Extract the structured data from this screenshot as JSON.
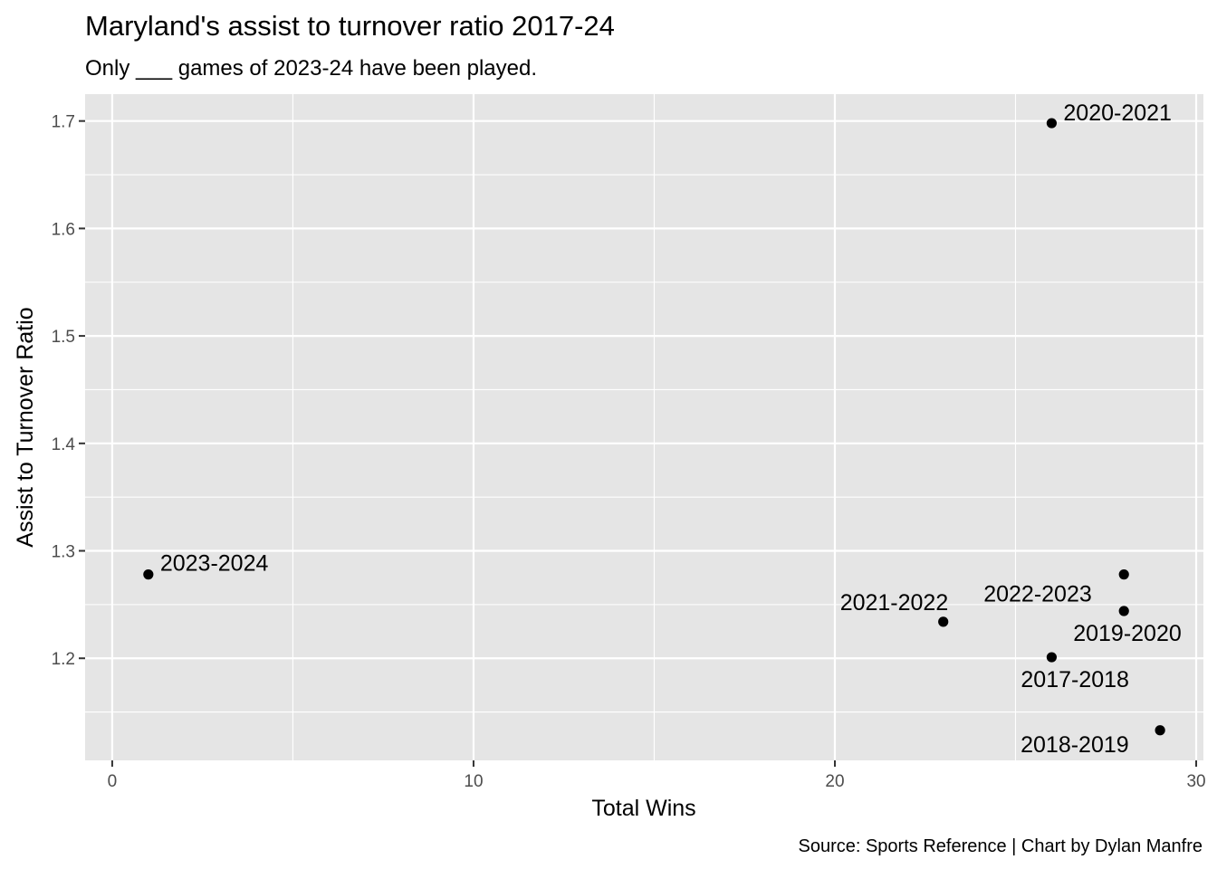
{
  "chart_data": {
    "type": "scatter",
    "title": "Maryland's assist to turnover ratio 2017-24",
    "subtitle": "Only ___ games of 2023-24 have been played.",
    "xlabel": "Total Wins",
    "ylabel": "Assist to Turnover Ratio",
    "caption": "Source: Sports Reference | Chart by Dylan Manfre",
    "xlim": [
      -0.75,
      30.2
    ],
    "ylim": [
      1.105,
      1.725
    ],
    "x_ticks": [
      0,
      10,
      20,
      30
    ],
    "x_tick_labels": [
      "0",
      "10",
      "20",
      "30"
    ],
    "y_ticks": [
      1.2,
      1.3,
      1.4,
      1.5,
      1.6,
      1.7
    ],
    "y_tick_labels": [
      "1.2",
      "1.3",
      "1.4",
      "1.5",
      "1.6",
      "1.7"
    ],
    "grid": true,
    "points": [
      {
        "label": "2020-2021",
        "x": 26,
        "y": 1.698
      },
      {
        "label": "2023-2024",
        "x": 1,
        "y": 1.278
      },
      {
        "label": "2021-2022",
        "x": 23,
        "y": 1.234
      },
      {
        "label": "2022-2023",
        "x": 28,
        "y": 1.278
      },
      {
        "label": "2019-2020",
        "x": 28,
        "y": 1.244
      },
      {
        "label": "2017-2018",
        "x": 26,
        "y": 1.201
      },
      {
        "label": "2018-2019",
        "x": 29,
        "y": 1.133
      }
    ],
    "colors": {
      "panel": "#e5e5e5",
      "grid": "#ffffff",
      "point": "#000000",
      "tick_text": "#4d4d4d"
    }
  }
}
